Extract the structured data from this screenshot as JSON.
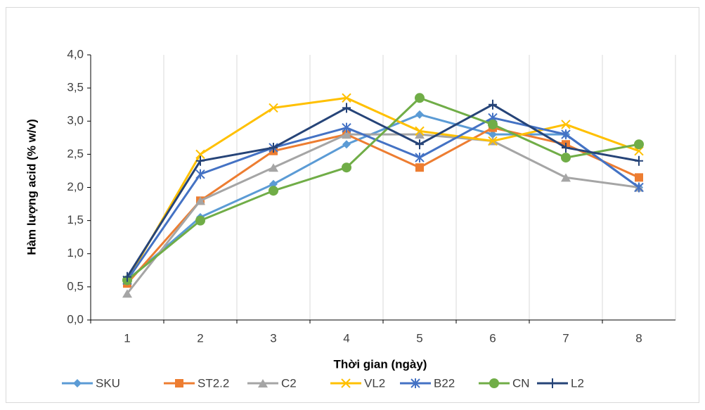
{
  "chart_data": {
    "type": "line",
    "x_label": "Thời gian (ngày)",
    "y_label": "Hàm lượng acid (% w/v)",
    "categories": [
      "1",
      "2",
      "3",
      "4",
      "5",
      "6",
      "7",
      "8"
    ],
    "series": [
      {
        "name": "SKU",
        "color": "#5B9BD5",
        "marker": "diamond",
        "values": [
          0.6,
          1.55,
          2.05,
          2.65,
          3.1,
          2.8,
          2.8,
          2.0
        ]
      },
      {
        "name": "ST2.2",
        "color": "#ED7D31",
        "marker": "square",
        "values": [
          0.55,
          1.8,
          2.55,
          2.8,
          2.3,
          2.9,
          2.65,
          2.15
        ]
      },
      {
        "name": "C2",
        "color": "#A5A5A5",
        "marker": "triangle",
        "values": [
          0.4,
          1.8,
          2.3,
          2.8,
          2.8,
          2.7,
          2.15,
          2.0
        ]
      },
      {
        "name": "VL2",
        "color": "#FFC000",
        "marker": "x",
        "values": [
          0.6,
          2.5,
          3.2,
          3.35,
          2.85,
          2.7,
          2.95,
          2.55
        ]
      },
      {
        "name": "B22",
        "color": "#4472C4",
        "marker": "star",
        "values": [
          0.6,
          2.2,
          2.6,
          2.9,
          2.45,
          3.05,
          2.8,
          2.0
        ]
      },
      {
        "name": "CN",
        "color": "#70AD47",
        "marker": "circle",
        "values": [
          0.6,
          1.5,
          1.95,
          2.3,
          3.35,
          2.95,
          2.45,
          2.65
        ]
      },
      {
        "name": "L2",
        "color": "#264478",
        "marker": "plus",
        "values": [
          0.65,
          2.4,
          2.6,
          3.2,
          2.65,
          3.25,
          2.6,
          2.4
        ]
      }
    ],
    "ylim": [
      0,
      4
    ],
    "yticks": [
      {
        "value": 0,
        "label": "0,0"
      },
      {
        "value": 0.5,
        "label": "0,5"
      },
      {
        "value": 1,
        "label": "1,0"
      },
      {
        "value": 1.5,
        "label": "1,5"
      },
      {
        "value": 2,
        "label": "2,0"
      },
      {
        "value": 2.5,
        "label": "2,5"
      },
      {
        "value": 3,
        "label": "3,0"
      },
      {
        "value": 3.5,
        "label": "3,5"
      },
      {
        "value": 4,
        "label": "4,0"
      }
    ],
    "legend": "bottom"
  }
}
